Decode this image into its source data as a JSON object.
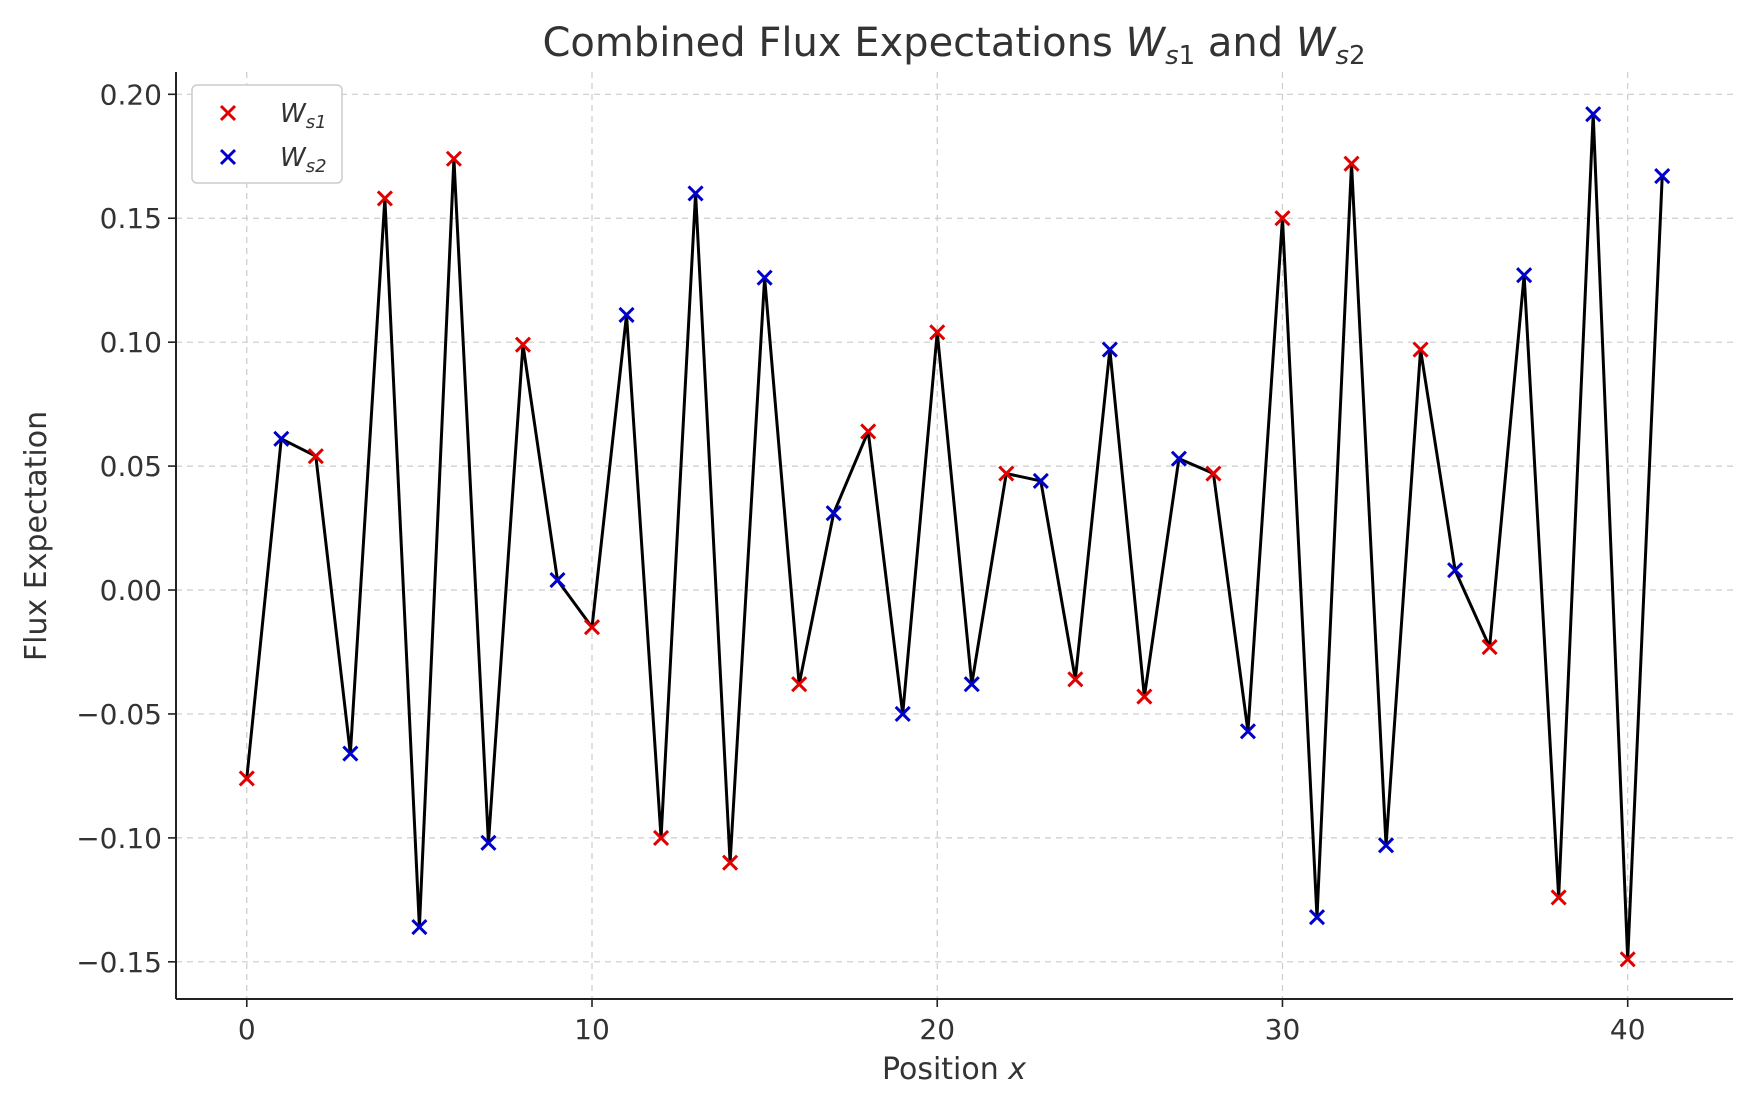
{
  "chart_data": {
    "type": "scatter",
    "title": "Combined Flux Expectations $W_{s1}$ and $W_{s2}$",
    "xlabel": "Position x",
    "ylabel": "Flux Expectation",
    "xlim": [
      -2.05,
      43.05
    ],
    "ylim": [
      -0.165,
      0.209
    ],
    "x_ticks": [
      0,
      10,
      20,
      30,
      40
    ],
    "y_ticks": [
      -0.15,
      -0.1,
      -0.05,
      0.0,
      0.05,
      0.1,
      0.15,
      0.2
    ],
    "x_tick_labels": [
      "0",
      "10",
      "20",
      "30",
      "40"
    ],
    "y_tick_labels": [
      "−0.15",
      "−0.10",
      "−0.05",
      "0.00",
      "0.05",
      "0.10",
      "0.15",
      "0.20"
    ],
    "grid": true,
    "legend_position": "top-left",
    "connecting_line": {
      "color": "#000000",
      "x": [
        0,
        1,
        2,
        3,
        4,
        5,
        6,
        7,
        8,
        9,
        10,
        11,
        12,
        13,
        14,
        15,
        16,
        17,
        18,
        19,
        20,
        21,
        22,
        23,
        24,
        25,
        26,
        27,
        28,
        29,
        30,
        31,
        32,
        33,
        34,
        35,
        36,
        37,
        38,
        39,
        40,
        41
      ]
    },
    "series": [
      {
        "name": "W_s1",
        "color": "#e00000",
        "marker": "x",
        "x": [
          0,
          2,
          4,
          6,
          8,
          10,
          12,
          14,
          16,
          18,
          20,
          22,
          24,
          26,
          28,
          30,
          32,
          34,
          36,
          38,
          40
        ],
        "values": [
          -0.076,
          0.054,
          0.158,
          0.174,
          0.099,
          -0.015,
          -0.1,
          -0.11,
          -0.038,
          0.064,
          0.104,
          0.047,
          -0.036,
          -0.043,
          0.047,
          0.15,
          0.172,
          0.097,
          -0.023,
          -0.124,
          -0.149
        ]
      },
      {
        "name": "W_s2",
        "color": "#0000cc",
        "marker": "x",
        "x": [
          1,
          3,
          5,
          7,
          9,
          11,
          13,
          15,
          17,
          19,
          21,
          23,
          25,
          27,
          29,
          31,
          33,
          35,
          37,
          39,
          41
        ],
        "values": [
          0.061,
          -0.066,
          -0.136,
          -0.102,
          0.004,
          0.111,
          0.16,
          0.126,
          0.031,
          -0.05,
          -0.038,
          0.044,
          0.097,
          0.053,
          -0.057,
          -0.132,
          -0.103,
          0.008,
          0.127,
          0.192,
          0.167
        ]
      }
    ]
  }
}
